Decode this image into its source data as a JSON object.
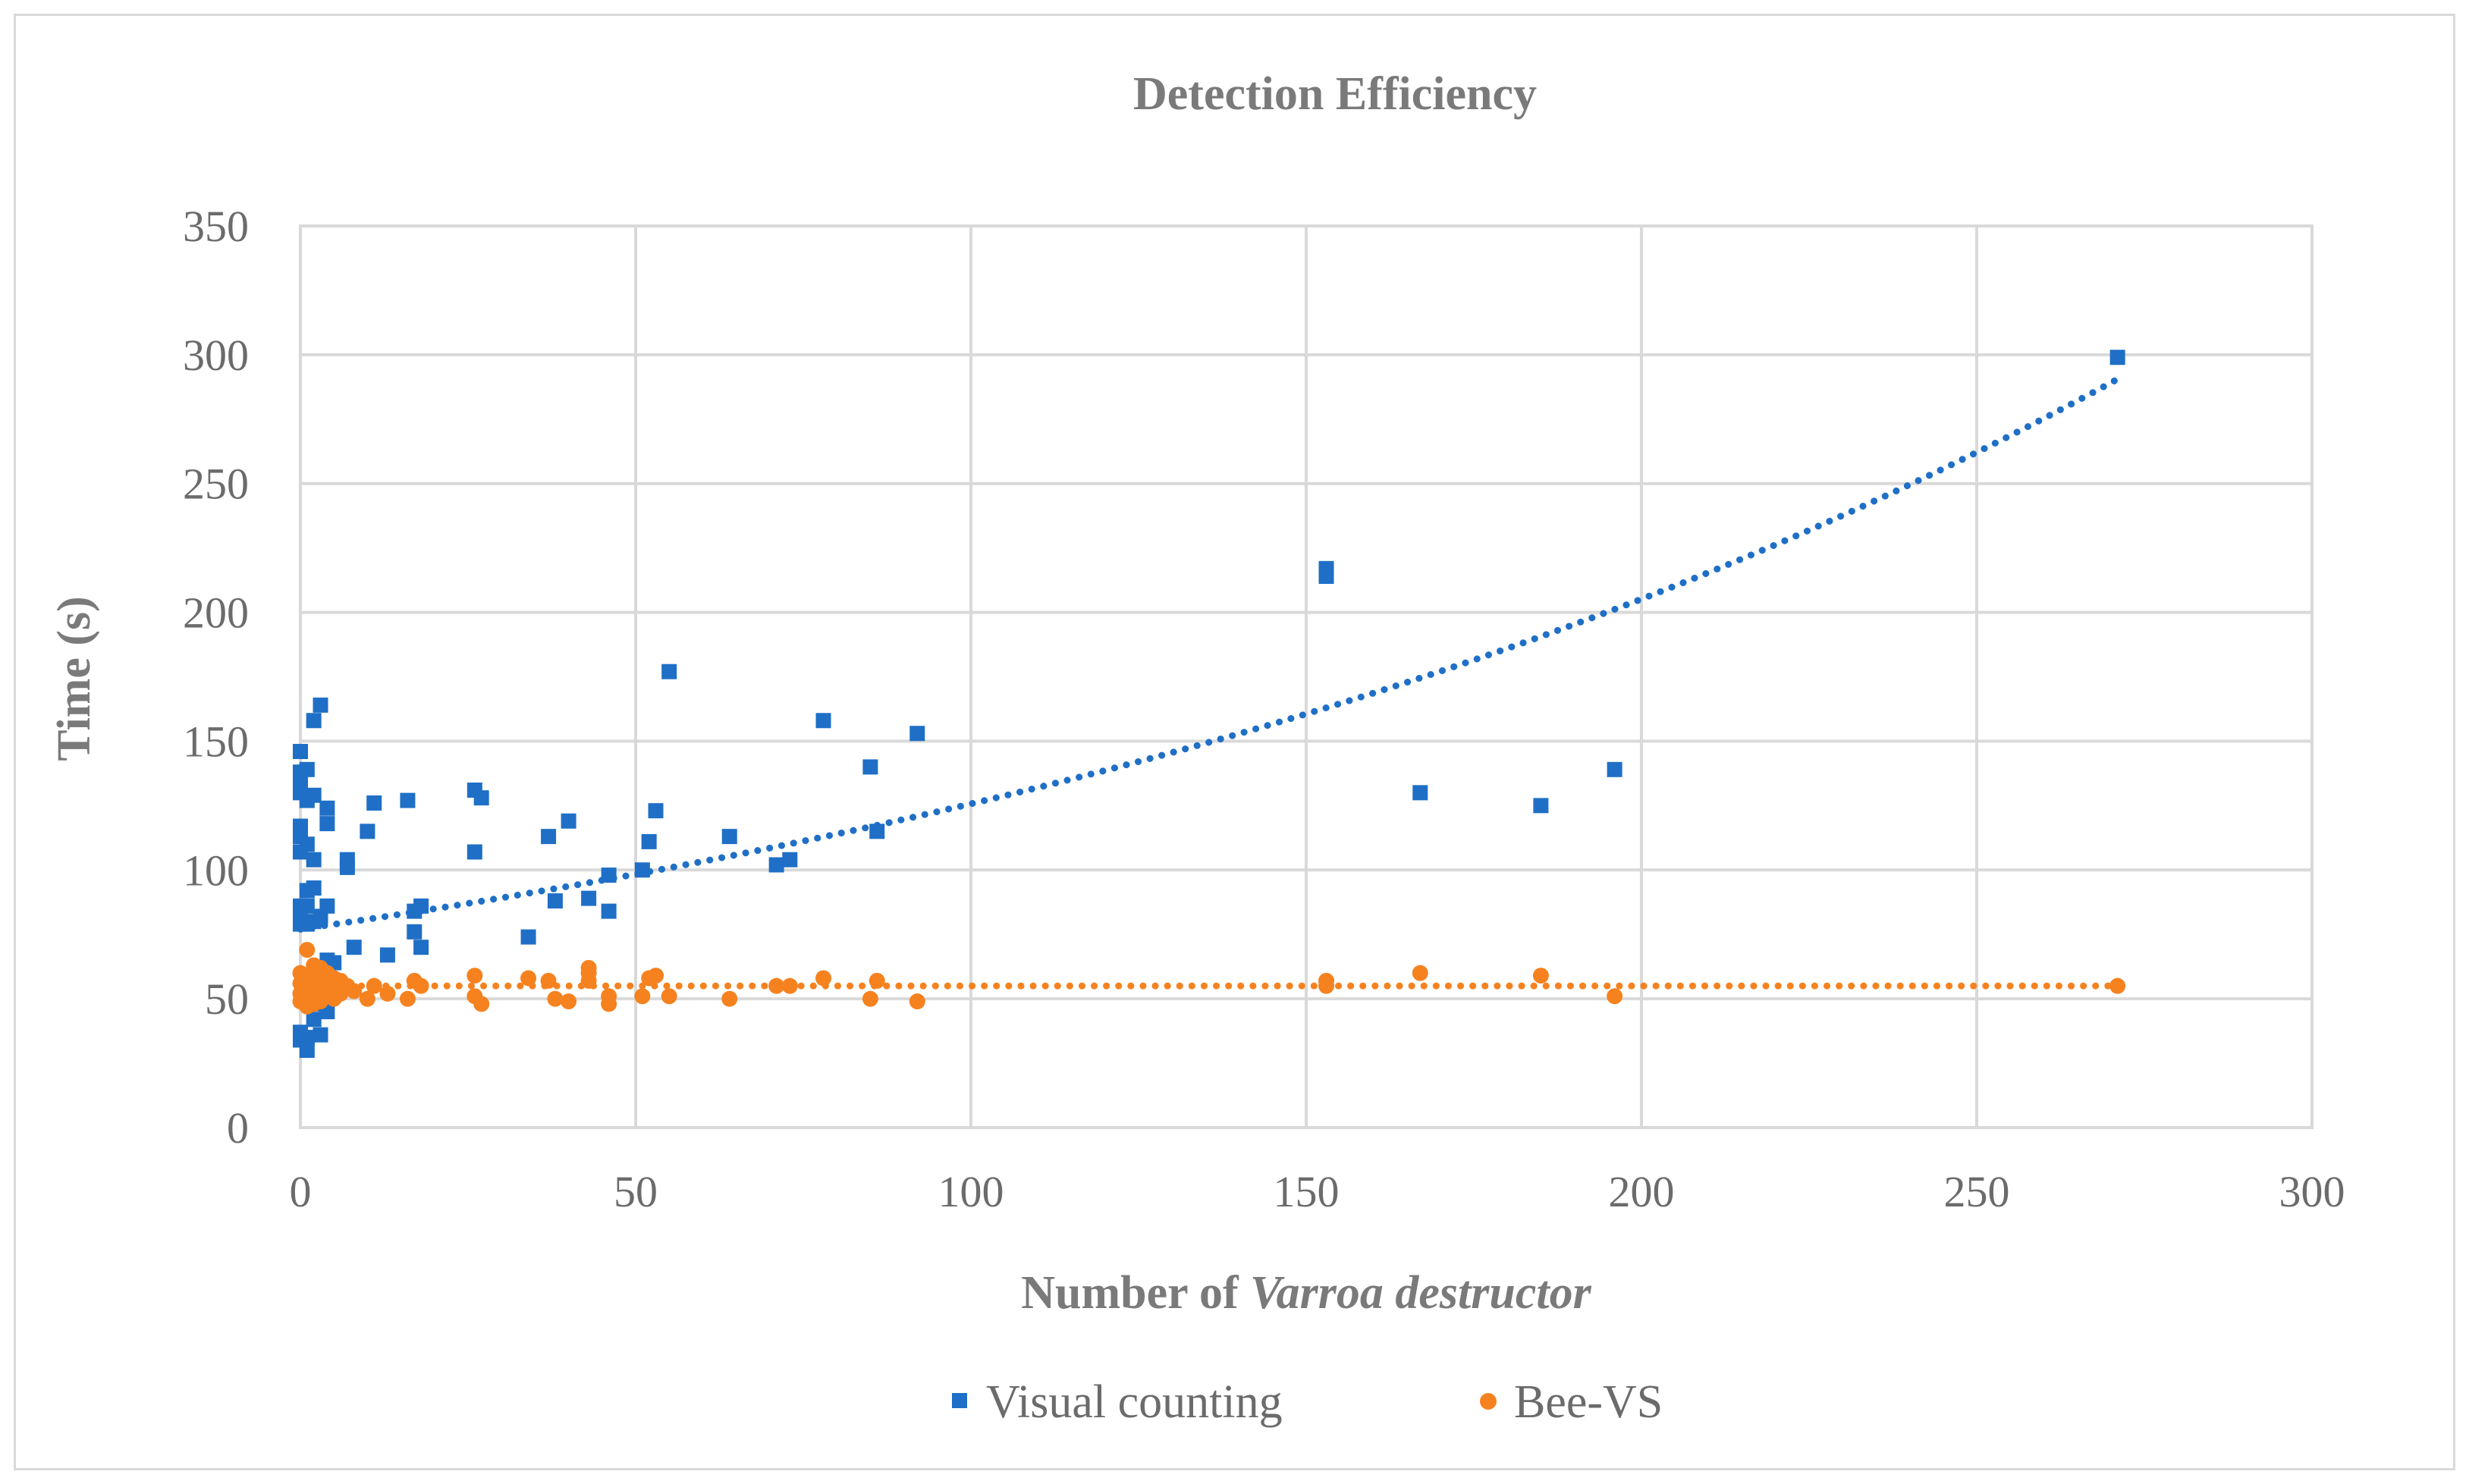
{
  "chart_data": {
    "type": "scatter",
    "title": "Detection Efficiency",
    "xlabel_prefix": "Number of ",
    "xlabel_italic": "Varroa destructor",
    "ylabel": "Time (s)",
    "xlim": [
      0,
      300
    ],
    "ylim": [
      0,
      350
    ],
    "x_ticks": [
      0,
      50,
      100,
      150,
      200,
      250,
      300
    ],
    "y_ticks": [
      0,
      50,
      100,
      150,
      200,
      250,
      300,
      350
    ],
    "grid": true,
    "legend_position": "bottom",
    "series": [
      {
        "name": "Visual counting",
        "color": "#1f6fc6",
        "marker": "square",
        "trendline": {
          "type": "exponential",
          "a": 77,
          "b": 0.0049,
          "x_range": [
            0,
            271
          ],
          "style": "dotted"
        },
        "points": [
          [
            0,
            146
          ],
          [
            0,
            138
          ],
          [
            0,
            133
          ],
          [
            0,
            130
          ],
          [
            0,
            117
          ],
          [
            0,
            113
          ],
          [
            0,
            107
          ],
          [
            0,
            86
          ],
          [
            0,
            82
          ],
          [
            0,
            79
          ],
          [
            0,
            37
          ],
          [
            0,
            34
          ],
          [
            1,
            139
          ],
          [
            1,
            127
          ],
          [
            1,
            110
          ],
          [
            1,
            92
          ],
          [
            1,
            86
          ],
          [
            1,
            79
          ],
          [
            1,
            50
          ],
          [
            1,
            35
          ],
          [
            1,
            30
          ],
          [
            2,
            158
          ],
          [
            2,
            129
          ],
          [
            2,
            104
          ],
          [
            2,
            93
          ],
          [
            2,
            80
          ],
          [
            2,
            48
          ],
          [
            2,
            42
          ],
          [
            3,
            164
          ],
          [
            3,
            82
          ],
          [
            3,
            36
          ],
          [
            4,
            124
          ],
          [
            4,
            118
          ],
          [
            4,
            86
          ],
          [
            4,
            65
          ],
          [
            4,
            45
          ],
          [
            5,
            64
          ],
          [
            7,
            104
          ],
          [
            7,
            101
          ],
          [
            8,
            70
          ],
          [
            10,
            115
          ],
          [
            11,
            126
          ],
          [
            13,
            67
          ],
          [
            16,
            127
          ],
          [
            17,
            84
          ],
          [
            17,
            76
          ],
          [
            18,
            86
          ],
          [
            18,
            70
          ],
          [
            26,
            131
          ],
          [
            26,
            107
          ],
          [
            27,
            128
          ],
          [
            34,
            74
          ],
          [
            37,
            113
          ],
          [
            38,
            88
          ],
          [
            40,
            119
          ],
          [
            43,
            89
          ],
          [
            46,
            98
          ],
          [
            46,
            84
          ],
          [
            51,
            100
          ],
          [
            52,
            111
          ],
          [
            53,
            123
          ],
          [
            55,
            177
          ],
          [
            64,
            113
          ],
          [
            71,
            102
          ],
          [
            73,
            104
          ],
          [
            78,
            158
          ],
          [
            85,
            140
          ],
          [
            86,
            115
          ],
          [
            92,
            153
          ],
          [
            153,
            217
          ],
          [
            153,
            214
          ],
          [
            167,
            130
          ],
          [
            185,
            125
          ],
          [
            196,
            139
          ],
          [
            271,
            299
          ]
        ]
      },
      {
        "name": "Bee-VS",
        "color": "#f5821f",
        "marker": "circle",
        "trendline": {
          "type": "linear",
          "value": 55,
          "x_range": [
            0,
            271
          ],
          "style": "dotted"
        },
        "points": [
          [
            0,
            60
          ],
          [
            0,
            56
          ],
          [
            0,
            52
          ],
          [
            0,
            49
          ],
          [
            1,
            69
          ],
          [
            1,
            58
          ],
          [
            1,
            54
          ],
          [
            1,
            50
          ],
          [
            1,
            47
          ],
          [
            2,
            63
          ],
          [
            2,
            59
          ],
          [
            2,
            55
          ],
          [
            2,
            51
          ],
          [
            2,
            48
          ],
          [
            3,
            62
          ],
          [
            3,
            57
          ],
          [
            3,
            53
          ],
          [
            3,
            49
          ],
          [
            4,
            60
          ],
          [
            4,
            56
          ],
          [
            4,
            52
          ],
          [
            5,
            58
          ],
          [
            5,
            54
          ],
          [
            5,
            50
          ],
          [
            6,
            57
          ],
          [
            6,
            52
          ],
          [
            7,
            55
          ],
          [
            8,
            53
          ],
          [
            10,
            50
          ],
          [
            11,
            55
          ],
          [
            13,
            52
          ],
          [
            16,
            50
          ],
          [
            17,
            57
          ],
          [
            18,
            55
          ],
          [
            26,
            59
          ],
          [
            26,
            51
          ],
          [
            27,
            48
          ],
          [
            34,
            58
          ],
          [
            37,
            57
          ],
          [
            38,
            50
          ],
          [
            40,
            49
          ],
          [
            43,
            62
          ],
          [
            43,
            60
          ],
          [
            43,
            57
          ],
          [
            46,
            51
          ],
          [
            46,
            48
          ],
          [
            51,
            51
          ],
          [
            52,
            58
          ],
          [
            53,
            59
          ],
          [
            55,
            51
          ],
          [
            64,
            50
          ],
          [
            71,
            55
          ],
          [
            73,
            55
          ],
          [
            78,
            58
          ],
          [
            85,
            50
          ],
          [
            86,
            57
          ],
          [
            92,
            49
          ],
          [
            153,
            57
          ],
          [
            153,
            55
          ],
          [
            167,
            60
          ],
          [
            185,
            59
          ],
          [
            196,
            51
          ],
          [
            271,
            55
          ]
        ]
      }
    ]
  }
}
